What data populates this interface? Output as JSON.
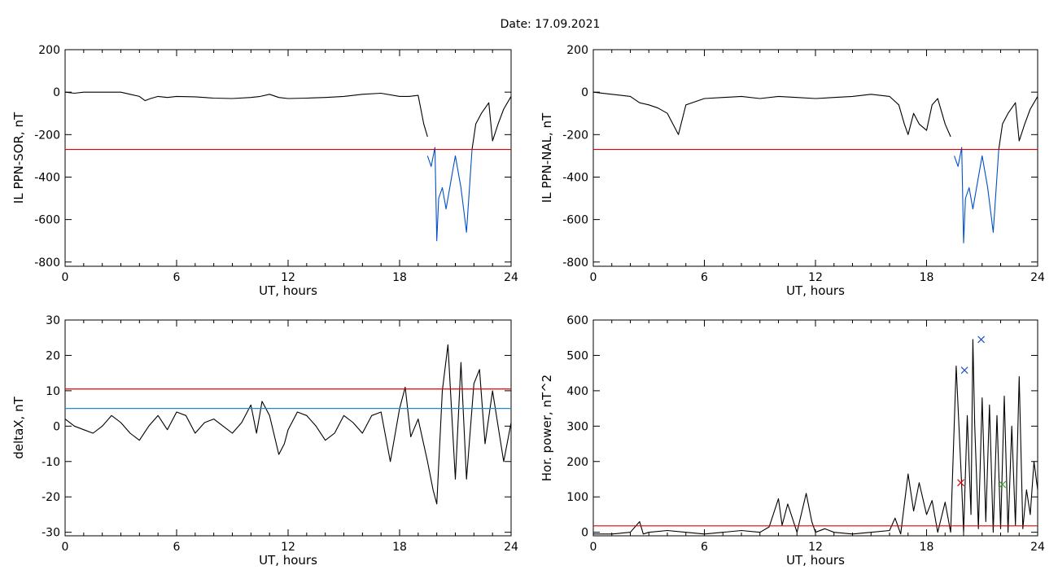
{
  "page": {
    "title": "Date:  17.09.2021"
  },
  "chart_data": [
    {
      "type": "line",
      "panel": "top-left",
      "xlabel": "UT, hours",
      "ylabel": "IL PPN-SOR, nT",
      "xlim": [
        0,
        24
      ],
      "ylim": [
        -820,
        200
      ],
      "xticks": [
        "0",
        "6",
        "12",
        "18",
        "24"
      ],
      "yticks": [
        "200",
        "0",
        "-200",
        "-400",
        "-600",
        "-800"
      ],
      "xtick_values": [
        0,
        6,
        12,
        18,
        24
      ],
      "ytick_values": [
        200,
        0,
        -200,
        -400,
        -600,
        -800
      ],
      "hlines": [
        {
          "y": -270,
          "color": "#e00000"
        }
      ],
      "series": [
        {
          "color": "#000000",
          "x": [
            0,
            0.5,
            1,
            2,
            3,
            3.5,
            4,
            4.3,
            4.6,
            5,
            5.5,
            6,
            7,
            8,
            9,
            10,
            10.5,
            11,
            11.5,
            12,
            13,
            14,
            15,
            16,
            17,
            18,
            18.5,
            19,
            19.3,
            19.5
          ],
          "y": [
            0,
            -5,
            0,
            0,
            0,
            -10,
            -20,
            -40,
            -30,
            -20,
            -25,
            -20,
            -22,
            -28,
            -30,
            -25,
            -20,
            -10,
            -25,
            -30,
            -28,
            -25,
            -20,
            -10,
            -5,
            -20,
            -20,
            -15,
            -150,
            -210
          ]
        },
        {
          "color": "#0050c8",
          "x": [
            19.5,
            19.7,
            19.9,
            20.0,
            20.1,
            20.3,
            20.5,
            20.8,
            21.0,
            21.3,
            21.6,
            21.9
          ],
          "y": [
            -300,
            -350,
            -260,
            -700,
            -500,
            -450,
            -550,
            -400,
            -300,
            -450,
            -660,
            -270
          ]
        },
        {
          "color": "#000000",
          "x": [
            21.9,
            22.1,
            22.4,
            22.8,
            23.0,
            23.3,
            23.6,
            24
          ],
          "y": [
            -270,
            -150,
            -100,
            -50,
            -230,
            -150,
            -80,
            -20
          ]
        }
      ]
    },
    {
      "type": "line",
      "panel": "top-right",
      "xlabel": "UT, hours",
      "ylabel": "IL PPN-NAL, nT",
      "xlim": [
        0,
        24
      ],
      "ylim": [
        -820,
        200
      ],
      "xticks": [
        "0",
        "6",
        "12",
        "18",
        "24"
      ],
      "yticks": [
        "200",
        "0",
        "-200",
        "-400",
        "-600",
        "-800"
      ],
      "xtick_values": [
        0,
        6,
        12,
        18,
        24
      ],
      "ytick_values": [
        200,
        0,
        -200,
        -400,
        -600,
        -800
      ],
      "hlines": [
        {
          "y": -270,
          "color": "#e00000"
        }
      ],
      "series": [
        {
          "color": "#000000",
          "x": [
            0,
            1,
            2,
            2.5,
            3,
            3.5,
            4,
            4.3,
            4.6,
            5,
            6,
            7,
            8,
            9,
            10,
            11,
            12,
            13,
            14,
            15,
            16,
            16.5,
            16.8,
            17,
            17.3,
            17.6,
            18,
            18.3,
            18.6,
            19,
            19.3
          ],
          "y": [
            0,
            -10,
            -20,
            -50,
            -60,
            -75,
            -100,
            -150,
            -200,
            -60,
            -30,
            -25,
            -20,
            -30,
            -20,
            -25,
            -30,
            -25,
            -20,
            -10,
            -20,
            -60,
            -150,
            -200,
            -100,
            -150,
            -180,
            -60,
            -30,
            -150,
            -210
          ]
        },
        {
          "color": "#0050c8",
          "x": [
            19.5,
            19.7,
            19.9,
            20.0,
            20.1,
            20.3,
            20.5,
            20.8,
            21.0,
            21.3,
            21.6,
            21.9
          ],
          "y": [
            -300,
            -350,
            -260,
            -710,
            -500,
            -450,
            -550,
            -400,
            -300,
            -450,
            -660,
            -270
          ]
        },
        {
          "color": "#000000",
          "x": [
            21.9,
            22.1,
            22.4,
            22.8,
            23.0,
            23.3,
            23.6,
            24
          ],
          "y": [
            -270,
            -150,
            -100,
            -50,
            -230,
            -150,
            -80,
            -20
          ]
        }
      ]
    },
    {
      "type": "line",
      "panel": "bottom-left",
      "xlabel": "UT, hours",
      "ylabel": "deltaX, nT",
      "xlim": [
        0,
        24
      ],
      "ylim": [
        -31,
        30
      ],
      "xticks": [
        "0",
        "6",
        "12",
        "18",
        "24"
      ],
      "yticks": [
        "30",
        "20",
        "10",
        "0",
        "-10",
        "-20",
        "-30"
      ],
      "xtick_values": [
        0,
        6,
        12,
        18,
        24
      ],
      "ytick_values": [
        30,
        20,
        10,
        0,
        -10,
        -20,
        -30
      ],
      "hlines": [
        {
          "y": 10.5,
          "color": "#e00000"
        },
        {
          "y": 5,
          "color": "#1e90c8"
        }
      ],
      "series": [
        {
          "color": "#000000",
          "x": [
            0,
            0.5,
            1,
            1.5,
            2,
            2.5,
            3,
            3.5,
            4,
            4.5,
            5,
            5.5,
            6,
            6.5,
            7,
            7.5,
            8,
            8.5,
            9,
            9.5,
            10,
            10.3,
            10.6,
            11,
            11.5,
            11.8,
            12,
            12.5,
            13,
            13.5,
            14,
            14.5,
            15,
            15.5,
            16,
            16.5,
            17,
            17.5,
            18,
            18.3,
            18.6,
            19,
            19.5,
            19.8,
            20,
            20.3,
            20.6,
            21,
            21.3,
            21.6,
            22,
            22.3,
            22.6,
            23,
            23.3,
            23.6,
            24
          ],
          "y": [
            2,
            0,
            -1,
            -2,
            0,
            3,
            1,
            -2,
            -4,
            0,
            3,
            -1,
            4,
            3,
            -2,
            1,
            2,
            0,
            -2,
            1,
            6,
            -2,
            7,
            3,
            -8,
            -5,
            -1,
            4,
            3,
            0,
            -4,
            -2,
            3,
            1,
            -2,
            3,
            4,
            -10,
            5,
            11,
            -3,
            2,
            -10,
            -18,
            -22,
            10,
            23,
            -15,
            18,
            -15,
            12,
            16,
            -5,
            10,
            0,
            -10,
            1
          ]
        }
      ]
    },
    {
      "type": "line",
      "panel": "bottom-right",
      "xlabel": "UT, hours",
      "ylabel": "Hor. power, nT^2",
      "xlim": [
        0,
        24
      ],
      "ylim": [
        -10,
        600
      ],
      "xticks": [
        "0",
        "6",
        "12",
        "18",
        "24"
      ],
      "yticks": [
        "600",
        "500",
        "400",
        "300",
        "200",
        "100",
        "0"
      ],
      "xtick_values": [
        0,
        6,
        12,
        18,
        24
      ],
      "ytick_values": [
        600,
        500,
        400,
        300,
        200,
        100,
        0
      ],
      "hlines": [
        {
          "y": 18,
          "color": "#e00000"
        }
      ],
      "series": [
        {
          "color": "#000000",
          "x": [
            0,
            1,
            2,
            2.5,
            2.7,
            3,
            4,
            5,
            6,
            7,
            8,
            9,
            9.5,
            10,
            10.2,
            10.5,
            11,
            11.5,
            11.8,
            12,
            12.5,
            13,
            14,
            15,
            16,
            16.3,
            16.6,
            17,
            17.3,
            17.6,
            18,
            18.3,
            18.6,
            19,
            19.3,
            19.6,
            19.9,
            20.0,
            20.2,
            20.4,
            20.5,
            20.6,
            20.8,
            21,
            21.2,
            21.4,
            21.6,
            21.8,
            22,
            22.2,
            22.4,
            22.6,
            22.8,
            23,
            23.2,
            23.4,
            23.6,
            23.8,
            24
          ],
          "y": [
            -5,
            -5,
            0,
            30,
            -5,
            0,
            5,
            0,
            -5,
            0,
            5,
            0,
            15,
            95,
            20,
            80,
            0,
            110,
            30,
            0,
            10,
            0,
            -5,
            0,
            5,
            40,
            -5,
            165,
            60,
            140,
            50,
            90,
            0,
            85,
            0,
            470,
            130,
            0,
            330,
            50,
            545,
            300,
            10,
            380,
            30,
            360,
            0,
            330,
            10,
            385,
            0,
            300,
            20,
            440,
            10,
            120,
            50,
            200,
            120
          ]
        }
      ],
      "markers": [
        {
          "x": 19.85,
          "y": 140,
          "color": "#e00000"
        },
        {
          "x": 20.05,
          "y": 458,
          "color": "#1e50c8"
        },
        {
          "x": 20.95,
          "y": 545,
          "color": "#1e50c8"
        },
        {
          "x": 22.1,
          "y": 135,
          "color": "#28a028"
        }
      ]
    }
  ]
}
